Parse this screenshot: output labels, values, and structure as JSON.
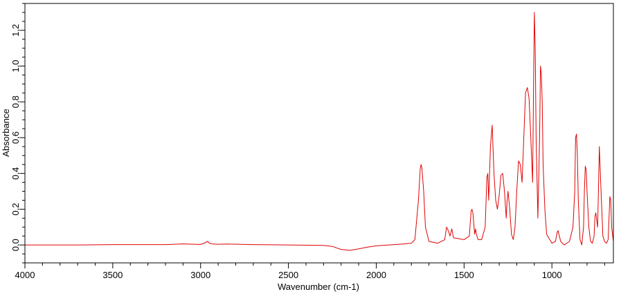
{
  "chart_data": {
    "type": "line",
    "xlabel": "Wavenumber (cm-1)",
    "ylabel": "Absorbance",
    "xlim": [
      4000,
      650
    ],
    "ylim": [
      -0.1,
      1.35
    ],
    "x_reversed": true,
    "x_ticks": [
      4000,
      3500,
      3000,
      2500,
      2000,
      1500,
      1000
    ],
    "x_tick_labels": [
      "4000",
      "3500",
      "3000",
      "2500",
      "2000",
      "1500",
      "1000"
    ],
    "y_ticks": [
      0.0,
      0.2,
      0.4,
      0.6,
      0.8,
      1.0,
      1.2
    ],
    "y_tick_labels": [
      "0,0",
      "0,2",
      "0,4",
      "0,6",
      "0,8",
      "1,0",
      "1,2"
    ],
    "grid": false,
    "legend": "none",
    "series": [
      {
        "color": "#e00000",
        "x": [
          4000,
          3700,
          3500,
          3200,
          3100,
          3000,
          2975,
          2960,
          2950,
          2930,
          2900,
          2850,
          2700,
          2500,
          2300,
          2250,
          2200,
          2150,
          2100,
          2050,
          2000,
          1900,
          1850,
          1800,
          1780,
          1760,
          1750,
          1745,
          1740,
          1730,
          1720,
          1700,
          1650,
          1610,
          1600,
          1590,
          1580,
          1570,
          1560,
          1500,
          1470,
          1460,
          1455,
          1450,
          1440,
          1435,
          1430,
          1420,
          1400,
          1380,
          1370,
          1365,
          1360,
          1350,
          1340,
          1330,
          1320,
          1310,
          1300,
          1290,
          1280,
          1270,
          1260,
          1255,
          1250,
          1240,
          1230,
          1220,
          1210,
          1200,
          1190,
          1180,
          1170,
          1160,
          1150,
          1140,
          1130,
          1120,
          1110,
          1105,
          1100,
          1095,
          1090,
          1080,
          1070,
          1065,
          1060,
          1055,
          1050,
          1040,
          1030,
          1000,
          980,
          970,
          965,
          960,
          950,
          930,
          900,
          880,
          870,
          865,
          860,
          855,
          850,
          840,
          830,
          820,
          815,
          810,
          805,
          800,
          790,
          780,
          770,
          760,
          755,
          750,
          740,
          735,
          730,
          720,
          710,
          700,
          690,
          680,
          675,
          670,
          665,
          660,
          650
        ],
        "y": [
          0.0,
          0.0,
          0.002,
          0.002,
          0.006,
          0.003,
          0.012,
          0.02,
          0.01,
          0.005,
          0.004,
          0.005,
          0.002,
          0.0,
          -0.002,
          -0.008,
          -0.025,
          -0.03,
          -0.022,
          -0.012,
          -0.005,
          0.002,
          0.005,
          0.01,
          0.03,
          0.25,
          0.42,
          0.45,
          0.43,
          0.3,
          0.1,
          0.02,
          0.01,
          0.03,
          0.1,
          0.08,
          0.05,
          0.09,
          0.04,
          0.03,
          0.05,
          0.19,
          0.2,
          0.18,
          0.06,
          0.09,
          0.06,
          0.03,
          0.03,
          0.1,
          0.38,
          0.4,
          0.25,
          0.55,
          0.67,
          0.4,
          0.25,
          0.2,
          0.28,
          0.39,
          0.4,
          0.3,
          0.15,
          0.25,
          0.3,
          0.2,
          0.06,
          0.03,
          0.1,
          0.3,
          0.47,
          0.45,
          0.35,
          0.6,
          0.85,
          0.88,
          0.82,
          0.6,
          0.35,
          0.85,
          1.3,
          1.1,
          0.6,
          0.15,
          0.6,
          1.0,
          0.95,
          0.8,
          0.45,
          0.2,
          0.06,
          0.01,
          0.02,
          0.07,
          0.08,
          0.06,
          0.02,
          0.0,
          0.02,
          0.1,
          0.3,
          0.6,
          0.62,
          0.5,
          0.25,
          0.03,
          0.0,
          0.1,
          0.3,
          0.44,
          0.42,
          0.3,
          0.1,
          0.02,
          0.01,
          0.05,
          0.16,
          0.18,
          0.1,
          0.3,
          0.55,
          0.3,
          0.05,
          0.02,
          0.01,
          0.03,
          0.15,
          0.27,
          0.25,
          0.1,
          0.02
        ]
      }
    ]
  }
}
